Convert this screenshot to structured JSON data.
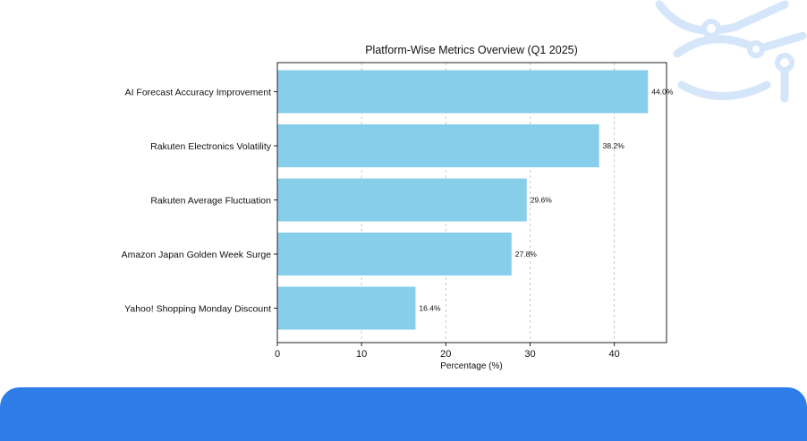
{
  "chart_data": {
    "type": "bar",
    "orientation": "horizontal",
    "title": "Platform-Wise Metrics Overview (Q1 2025)",
    "xlabel": "Percentage (%)",
    "ylabel": "",
    "xlim": [
      0,
      46.2
    ],
    "xticks": [
      0,
      10,
      20,
      30,
      40
    ],
    "grid": "x-dashed",
    "categories": [
      "AI Forecast Accuracy Improvement",
      "Rakuten Electronics Volatility",
      "Rakuten Average Fluctuation",
      "Amazon Japan Golden Week Surge",
      "Yahoo! Shopping Monday Discount"
    ],
    "values": [
      44.0,
      38.2,
      29.6,
      27.8,
      16.4
    ],
    "data_labels": [
      "44.0%",
      "38.2%",
      "29.6%",
      "27.8%",
      "16.4%"
    ],
    "bar_color": "#87ceeb"
  },
  "colors": {
    "banner": "#2f7de9",
    "decoration": "#d6e6fa"
  }
}
